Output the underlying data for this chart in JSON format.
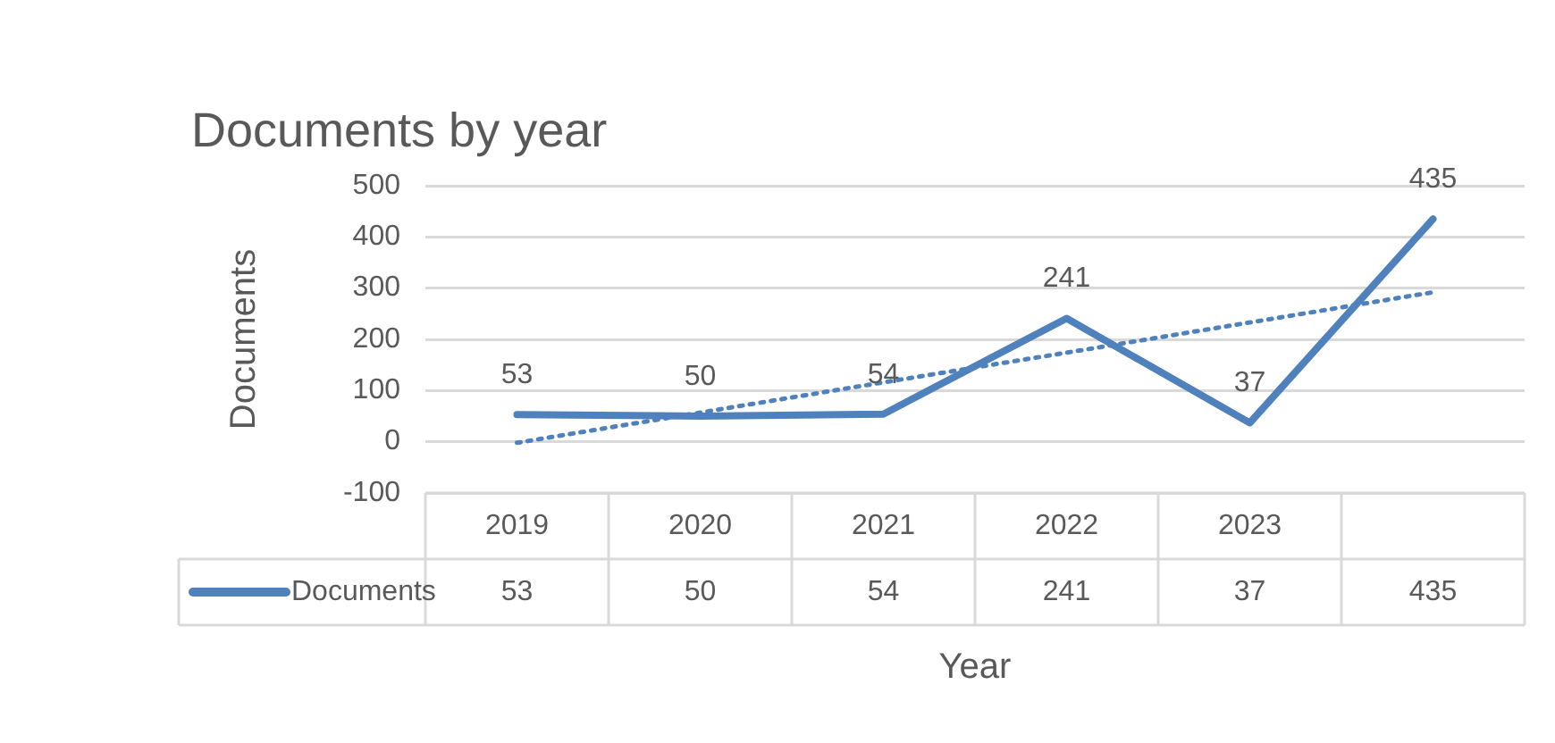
{
  "chart_data": {
    "type": "line",
    "title": "Documents by year",
    "xlabel": "Year",
    "ylabel": "Documents",
    "categories": [
      "2019",
      "2020",
      "2021",
      "2022",
      "2023",
      null
    ],
    "series": [
      {
        "name": "Documents",
        "color": "#4f81bd",
        "values": [
          53,
          50,
          54,
          241,
          37,
          435
        ],
        "value_labels": [
          "53",
          "50",
          "54",
          "241",
          "37",
          "435"
        ],
        "line_style": "solid"
      },
      {
        "type": "line",
        "color": "#4f81bd",
        "values": [
          -2,
          57,
          116,
          174,
          233,
          292
        ],
        "line_style": "dotted"
      }
    ],
    "ylim": [
      -100,
      500
    ],
    "yticks": [
      -100,
      0,
      100,
      200,
      300,
      400,
      500
    ],
    "grid": "y",
    "legend": "bottom",
    "marker": "none"
  }
}
